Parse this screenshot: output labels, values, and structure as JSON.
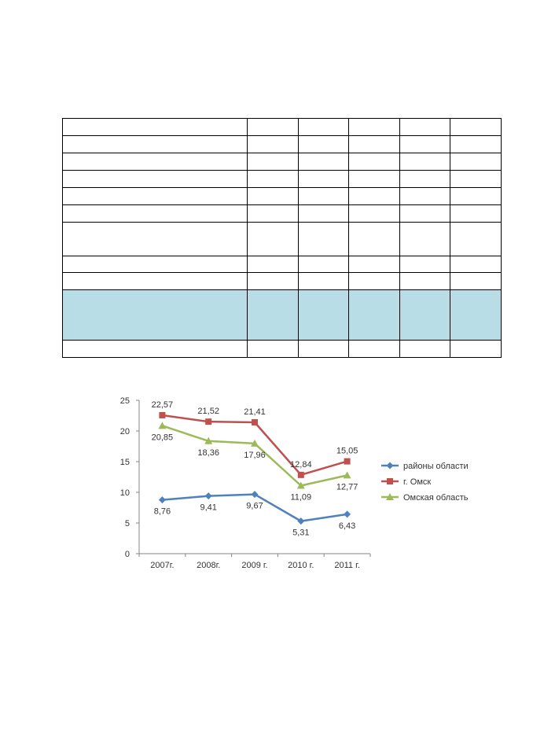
{
  "table": {
    "rows": [
      {
        "highlight": false
      },
      {
        "highlight": false
      },
      {
        "highlight": false
      },
      {
        "highlight": false
      },
      {
        "highlight": false
      },
      {
        "highlight": false
      },
      {
        "highlight": false
      },
      {
        "highlight": false
      },
      {
        "highlight": false
      },
      {
        "highlight": true
      },
      {
        "highlight": false
      }
    ],
    "highlight_color": "#b8dde7"
  },
  "chart_data": {
    "type": "line",
    "categories": [
      "2007г.",
      "2008г.",
      "2009 г.",
      "2010 г.",
      "2011 г."
    ],
    "ylim": [
      0,
      25
    ],
    "yticks": [
      0,
      5,
      10,
      15,
      20,
      25
    ],
    "grid": false,
    "legend_position": "right",
    "series": [
      {
        "name": "районы области",
        "color": "#4f81bd",
        "marker": "diamond",
        "values": [
          8.76,
          9.41,
          9.67,
          5.31,
          6.43
        ],
        "labels": [
          "8,76",
          "9,41",
          "9,67",
          "5,31",
          "6,43"
        ],
        "label_pos": "below"
      },
      {
        "name": "г. Омск",
        "color": "#c0504d",
        "marker": "square",
        "values": [
          22.57,
          21.52,
          21.41,
          12.84,
          15.05
        ],
        "labels": [
          "22,57",
          "21,52",
          "21,41",
          "12,84",
          "15,05"
        ],
        "label_pos": "above"
      },
      {
        "name": "Омская область",
        "color": "#9bbb59",
        "marker": "triangle",
        "values": [
          20.85,
          18.36,
          17.96,
          11.09,
          12.77
        ],
        "labels": [
          "20,85",
          "18,36",
          "17,96",
          "11,09",
          "12,77"
        ],
        "label_pos": "below"
      }
    ]
  }
}
